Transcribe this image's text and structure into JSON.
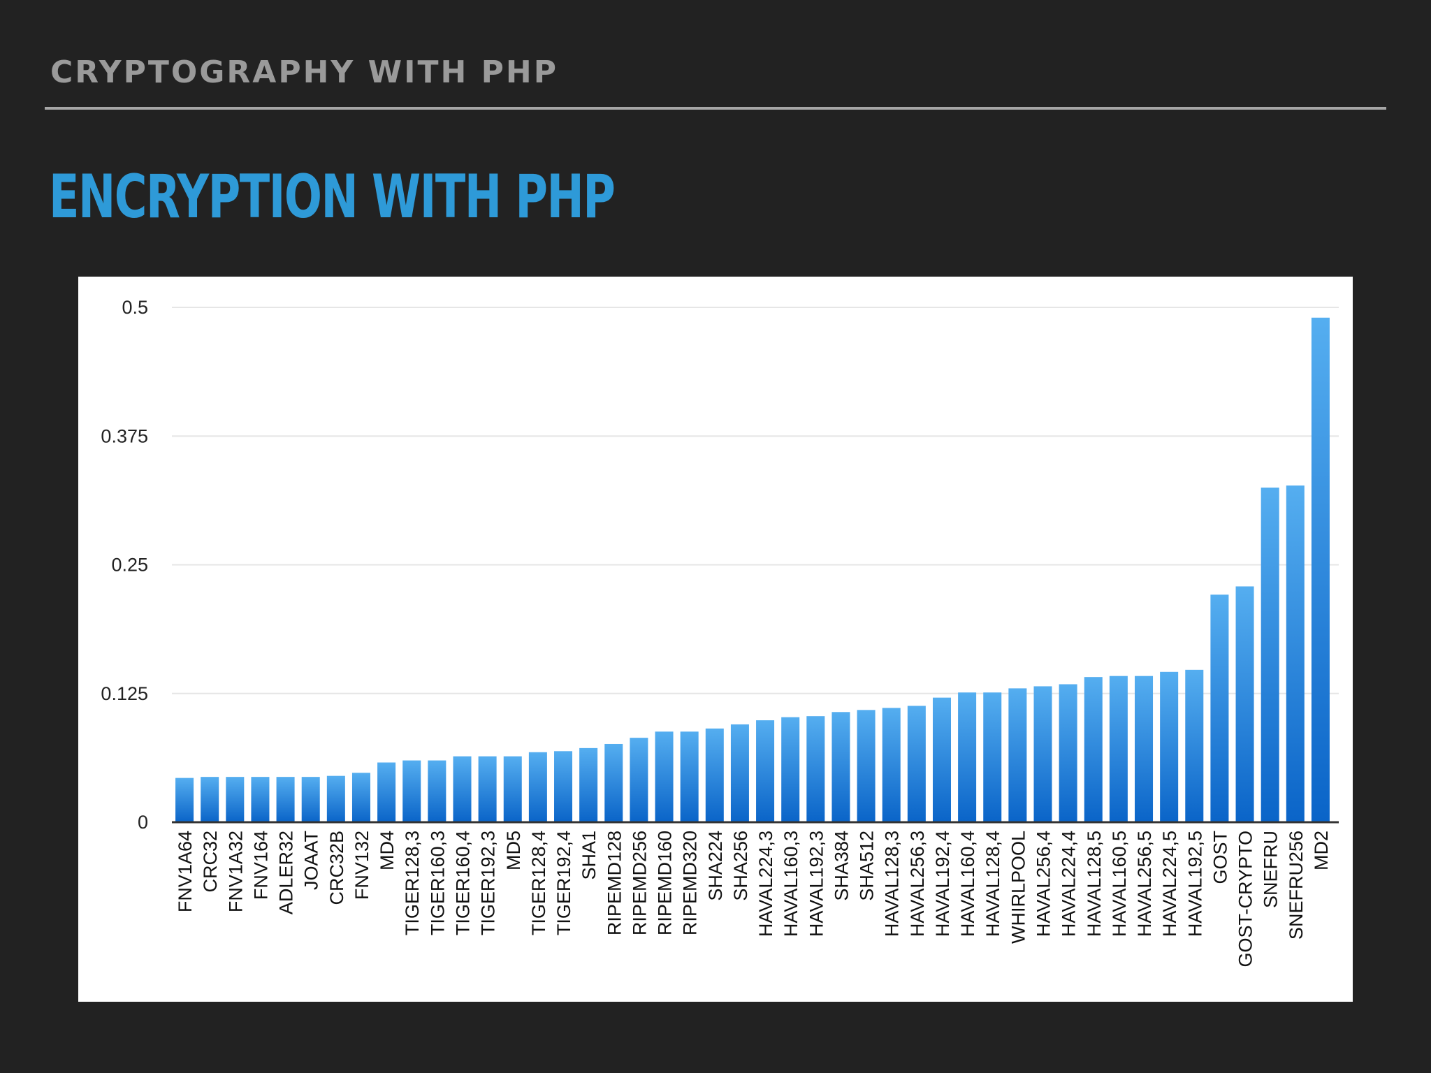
{
  "slide": {
    "header": "CRYPTOGRAPHY WITH PHP",
    "title": "ENCRYPTION WITH PHP"
  },
  "colors": {
    "background": "#222222",
    "header_text": "#9a9a9a",
    "header_rule": "#a6a6a6",
    "title": "#2e9ad8",
    "bar_top": "#55aef0",
    "bar_bottom": "#0a64c8",
    "gridline": "#e6e6e6",
    "axis": "#333333"
  },
  "chart_data": {
    "type": "bar",
    "title": "",
    "xlabel": "",
    "ylabel": "",
    "ylim": [
      0,
      0.5
    ],
    "yticks": [
      0,
      0.125,
      0.25,
      0.375,
      0.5
    ],
    "ytick_labels": [
      "0",
      "0.125",
      "0.25",
      "0.375",
      "0.5"
    ],
    "grid": true,
    "categories": [
      "FNV1A64",
      "CRC32",
      "FNV1A32",
      "FNV164",
      "ADLER32",
      "JOAAT",
      "CRC32B",
      "FNV132",
      "MD4",
      "TIGER128,3",
      "TIGER160,3",
      "TIGER160,4",
      "TIGER192,3",
      "MD5",
      "TIGER128,4",
      "TIGER192,4",
      "SHA1",
      "RIPEMD128",
      "RIPEMD256",
      "RIPEMD160",
      "RIPEMD320",
      "SHA224",
      "SHA256",
      "HAVAL224,3",
      "HAVAL160,3",
      "HAVAL192,3",
      "SHA384",
      "SHA512",
      "HAVAL128,3",
      "HAVAL256,3",
      "HAVAL192,4",
      "HAVAL160,4",
      "HAVAL128,4",
      "WHIRLPOOL",
      "HAVAL256,4",
      "HAVAL224,4",
      "HAVAL128,5",
      "HAVAL160,5",
      "HAVAL256,5",
      "HAVAL224,5",
      "HAVAL192,5",
      "GOST",
      "GOST-CRYPTO",
      "SNEFRU",
      "SNEFRU256",
      "MD2"
    ],
    "values": [
      0.043,
      0.044,
      0.044,
      0.044,
      0.044,
      0.044,
      0.045,
      0.048,
      0.058,
      0.06,
      0.06,
      0.064,
      0.064,
      0.064,
      0.068,
      0.069,
      0.072,
      0.076,
      0.082,
      0.088,
      0.088,
      0.091,
      0.095,
      0.099,
      0.102,
      0.103,
      0.107,
      0.109,
      0.111,
      0.113,
      0.121,
      0.126,
      0.126,
      0.13,
      0.132,
      0.134,
      0.141,
      0.142,
      0.142,
      0.146,
      0.148,
      0.221,
      0.229,
      0.325,
      0.327,
      0.49
    ]
  }
}
